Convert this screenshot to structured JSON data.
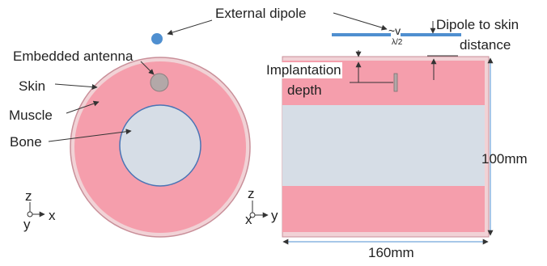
{
  "labels": {
    "external_dipole": "External dipole",
    "embedded_antenna": "Embedded antenna",
    "skin": "Skin",
    "muscle": "Muscle",
    "bone": "Bone",
    "source_symbol": "~v",
    "half_wavelength": "λ/2",
    "dipole_to_skin_line1": "Dipole to skin",
    "dipole_to_skin_line2": "distance",
    "implantation_line1": "Implantation",
    "implantation_line2": "depth",
    "height_dim": "100mm",
    "width_dim": "160mm"
  },
  "axes_front": {
    "up": "z",
    "right": "x",
    "out": "y"
  },
  "axes_side": {
    "up": "z",
    "right": "y",
    "out": "x"
  },
  "colors": {
    "skin": "#f1d2d6",
    "skin_edge": "#c98f99",
    "muscle": "#f59eac",
    "bone": "#d6dde6",
    "bone_edge": "#4a74b5",
    "antenna": "#b3a8a8",
    "dipole": "#4f8fd0",
    "arrow": "#333333"
  }
}
